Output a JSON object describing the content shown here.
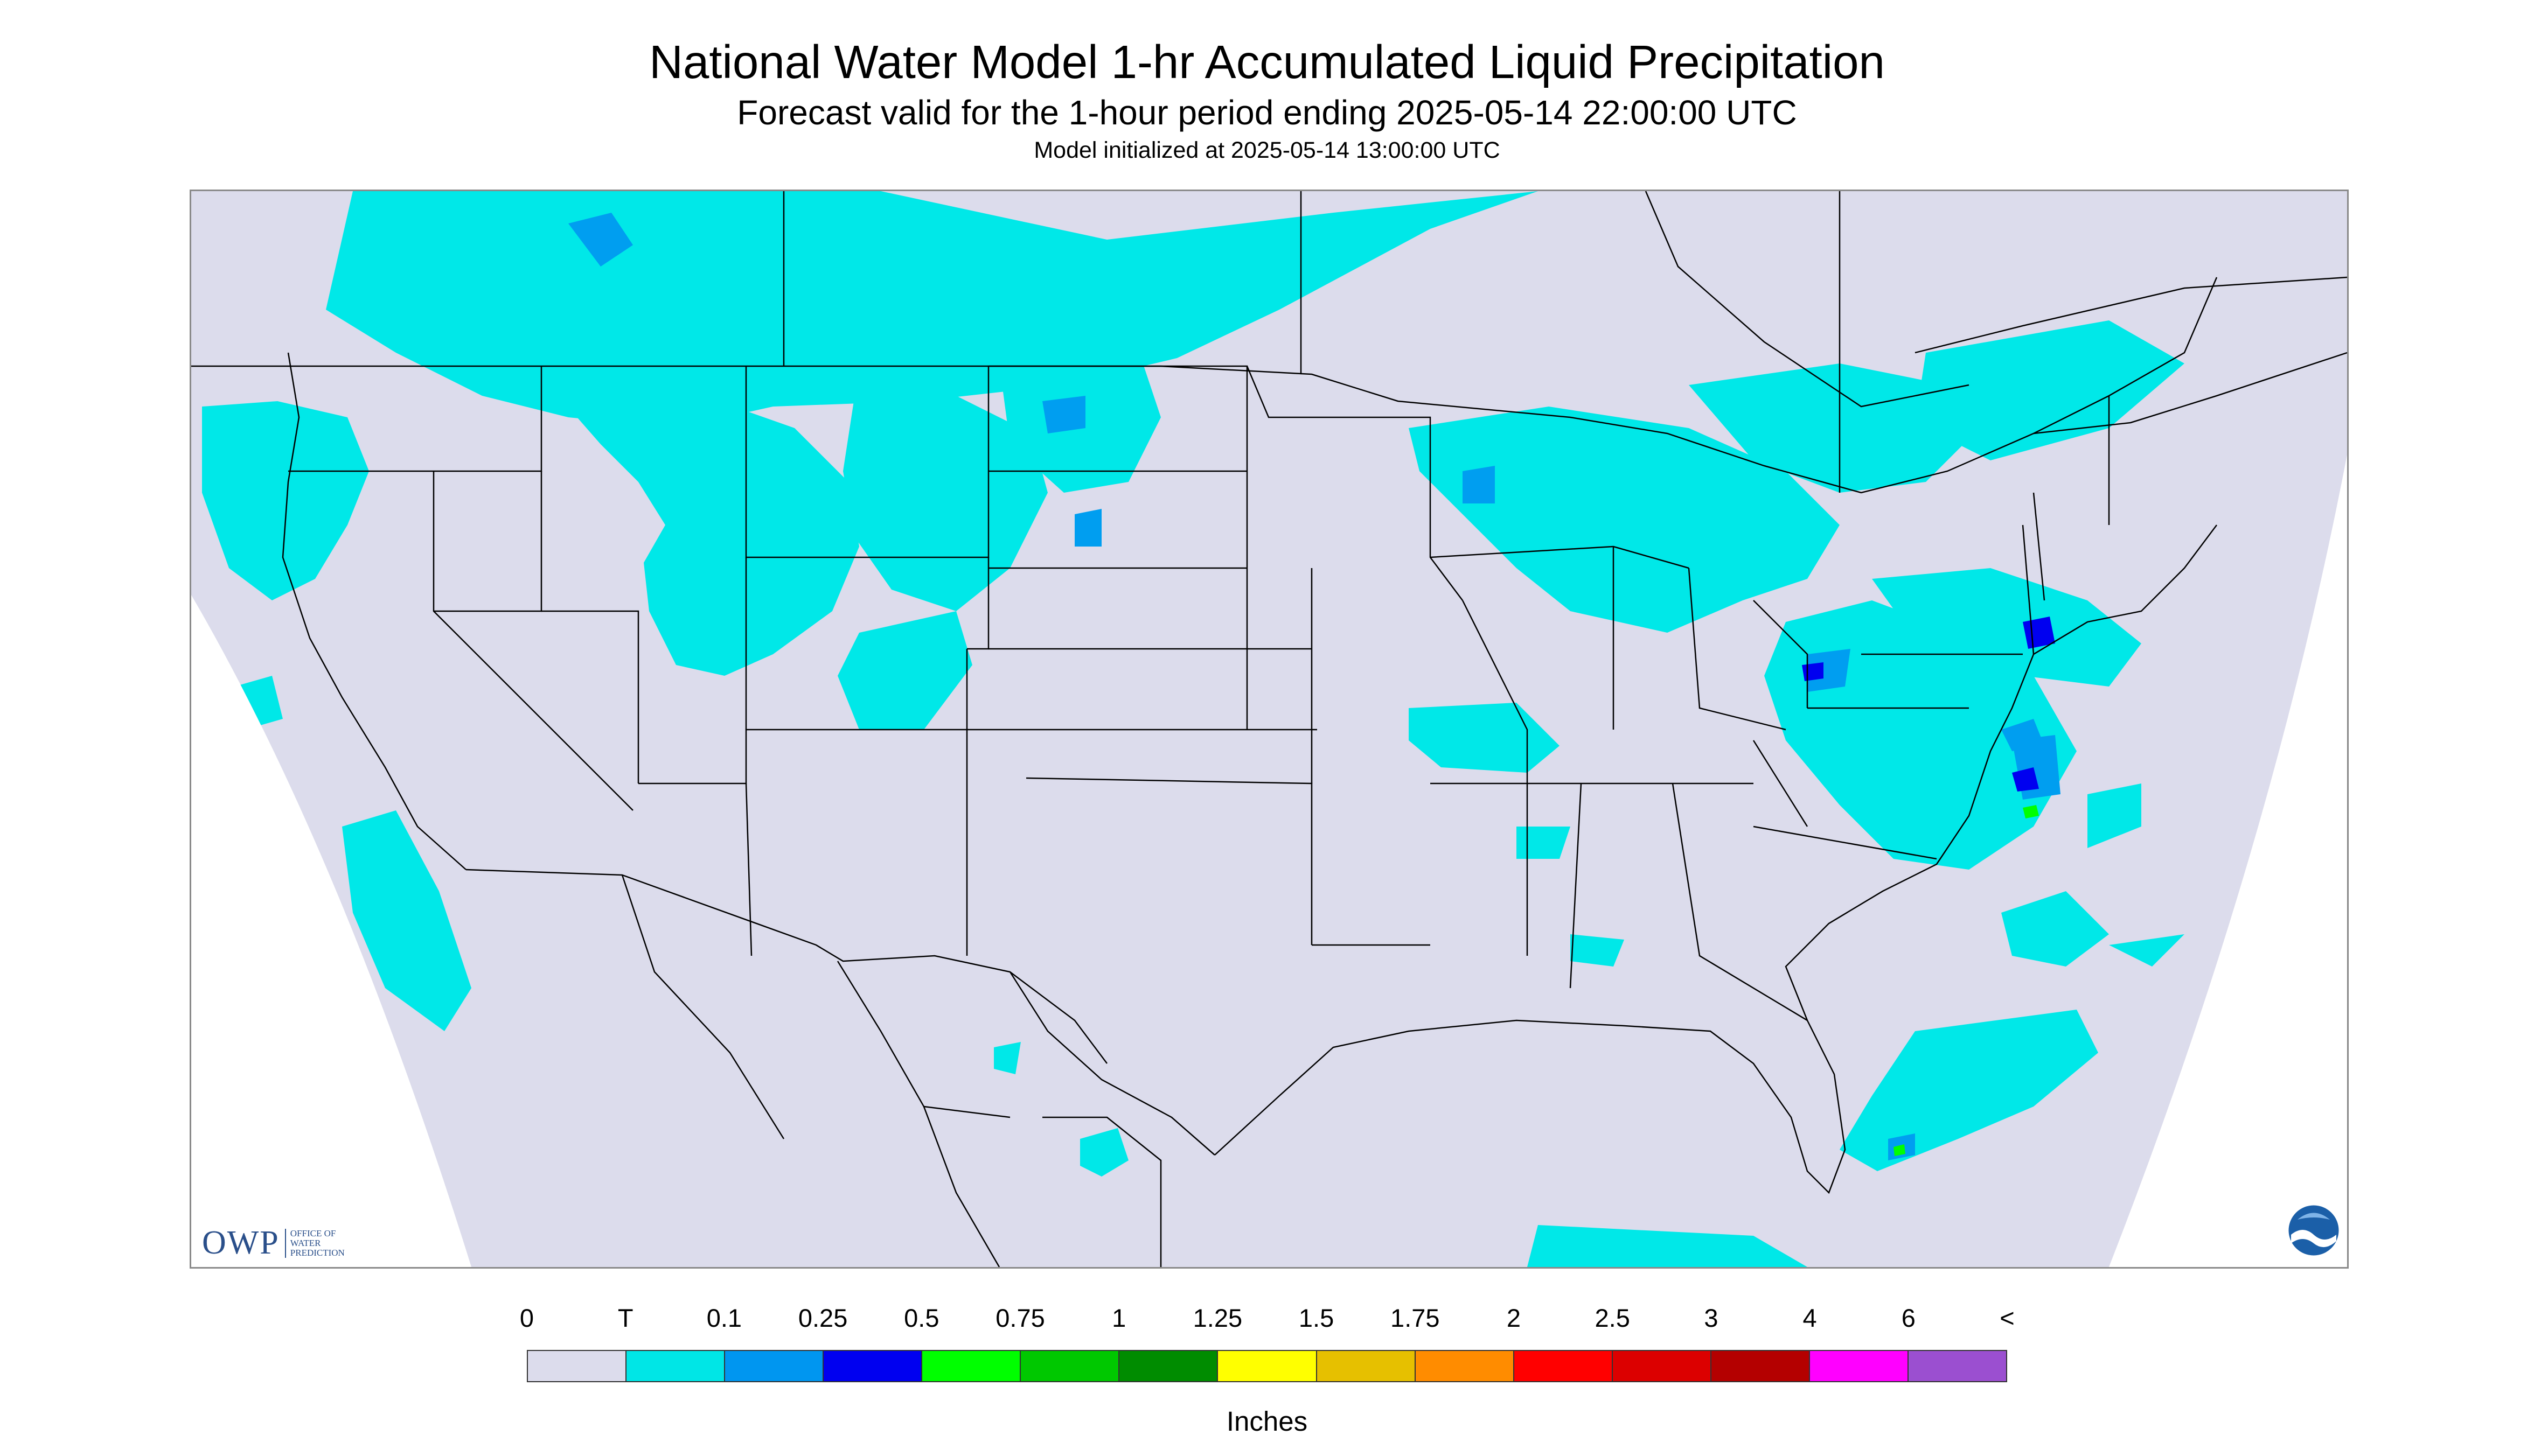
{
  "header": {
    "title": "National Water Model 1-hr Accumulated Liquid Precipitation",
    "subtitle": "Forecast valid for the 1-hour period ending 2025-05-14 22:00:00 UTC",
    "init_line": "Model initialized at 2025-05-14 13:00:00 UTC"
  },
  "map": {
    "background_color": "#dcdcec",
    "outside_color": "#ffffff",
    "border_color": "#000000",
    "precip_colors": [
      "#00e8e8",
      "#009ef0",
      "#0000f0",
      "#00ff00",
      "#00c800",
      "#009000",
      "#ffff00",
      "#e6c000"
    ]
  },
  "logos": {
    "left_icon": "owp-logo",
    "left_text": "OWP",
    "left_subtext": "OFFICE OF WATER PREDICTION",
    "right_icon": "noaa-logo"
  },
  "legend": {
    "ticks": [
      "0",
      "T",
      "0.1",
      "0.25",
      "0.5",
      "0.75",
      "1",
      "1.25",
      "1.5",
      "1.75",
      "2",
      "2.5",
      "3",
      "4",
      "6",
      "<"
    ],
    "colors": [
      "#dcdcec",
      "#00e6e6",
      "#0096f0",
      "#0000f0",
      "#00ff00",
      "#00c800",
      "#008c00",
      "#ffff00",
      "#e6c000",
      "#ff8c00",
      "#ff0000",
      "#dc0000",
      "#b40000",
      "#ff00ff",
      "#9b4fd0"
    ],
    "units": "Inches"
  }
}
